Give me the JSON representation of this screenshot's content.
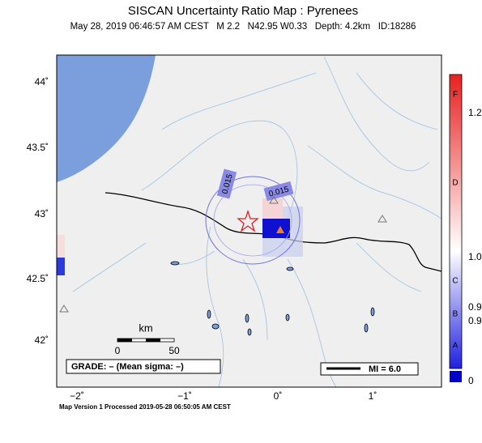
{
  "header": {
    "title": "SISCAN Uncertainty Ratio Map : Pyrenees",
    "subtitle": "May 28, 2019 06:46:57 AM CEST   M 2.2   N42.95 W0.33   Depth: 4.2km   ID:18286"
  },
  "map": {
    "lat_labels": [
      "44˚",
      "43.5˚",
      "43˚",
      "42.5˚",
      "42˚"
    ],
    "lon_labels": [
      "−2˚",
      "−1˚",
      "0˚",
      "1˚"
    ],
    "contour_labels": [
      "0.015",
      "0.015"
    ],
    "scale": {
      "unit": "km",
      "start": "0",
      "end": "50"
    },
    "grade": "GRADE: – (Mean sigma: –)",
    "mi": "MI = 6.0"
  },
  "colorbar": {
    "letters": [
      "F",
      "D",
      "C",
      "B",
      "A"
    ],
    "labels": [
      "1.2",
      "1.0",
      "0.9",
      "0.9",
      "0"
    ]
  },
  "footer": "Map Version 1 Processed 2019-05-28 06:50:05 AM CEST"
}
